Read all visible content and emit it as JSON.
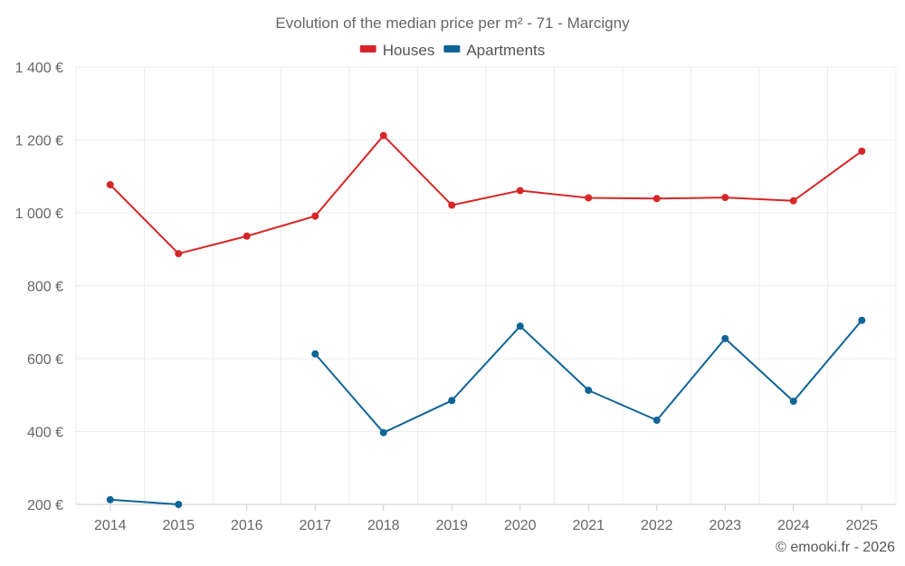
{
  "chart_data": {
    "type": "line",
    "title": "Evolution of the median price per m² - 71 - Marcigny",
    "xlabel": "",
    "ylabel": "",
    "x": [
      "2014",
      "2015",
      "2016",
      "2017",
      "2018",
      "2019",
      "2020",
      "2021",
      "2022",
      "2023",
      "2024",
      "2025"
    ],
    "ylim": [
      200,
      1400
    ],
    "yticks": [
      200,
      400,
      600,
      800,
      1000,
      1200,
      1400
    ],
    "ytick_labels": [
      "200 €",
      "400 €",
      "600 €",
      "800 €",
      "1 000 €",
      "1 200 €",
      "1 400 €"
    ],
    "grid": true,
    "legend_position": "top-center",
    "series": [
      {
        "name": "Houses",
        "color": "#d62728",
        "values": [
          1077,
          888,
          936,
          991,
          1212,
          1021,
          1061,
          1041,
          1039,
          1042,
          1033,
          1169
        ]
      },
      {
        "name": "Apartments",
        "color": "#0f6496",
        "values": [
          213,
          200,
          null,
          613,
          397,
          485,
          689,
          513,
          431,
          655,
          483,
          705
        ]
      }
    ]
  },
  "credit": "© emooki.fr - 2026"
}
